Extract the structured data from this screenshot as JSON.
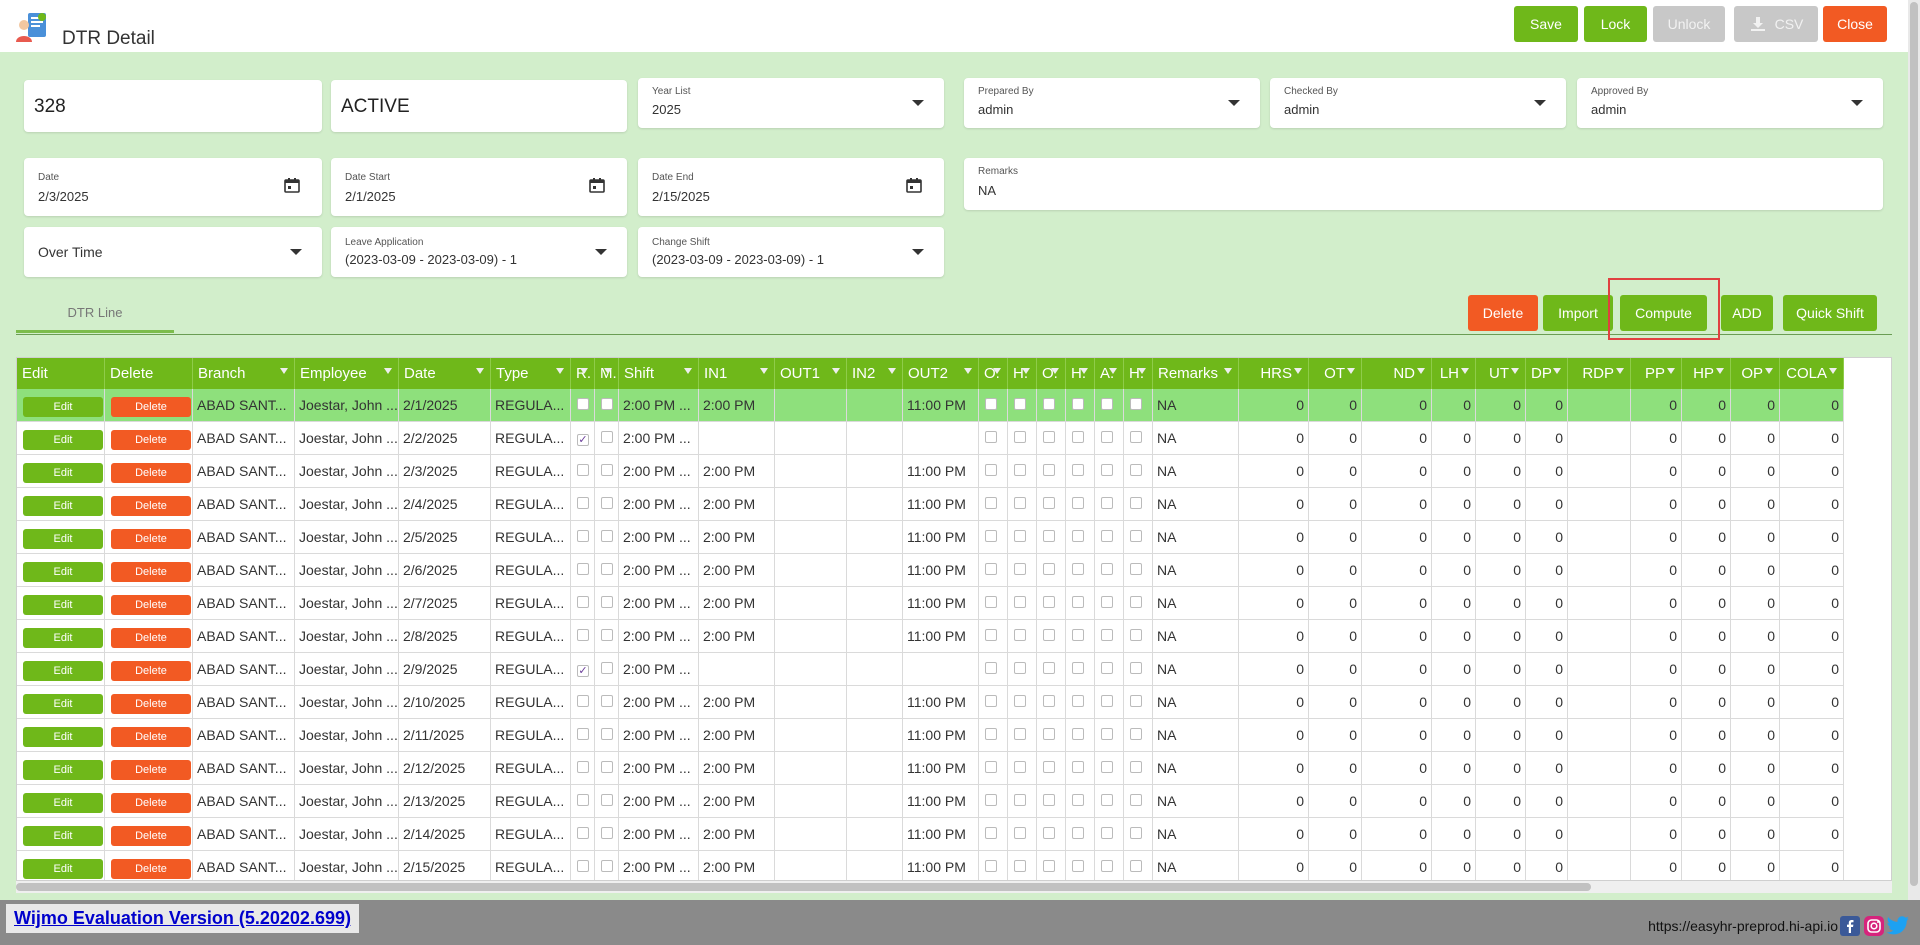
{
  "header": {
    "title": "DTR Detail",
    "buttons": {
      "save": "Save",
      "lock": "Lock",
      "unlock": "Unlock",
      "csv": "CSV",
      "close": "Close"
    }
  },
  "form": {
    "id_value": "328",
    "status_value": "ACTIVE",
    "year_list": {
      "label": "Year List",
      "value": "2025"
    },
    "prepared_by": {
      "label": "Prepared By",
      "value": "admin"
    },
    "checked_by": {
      "label": "Checked By",
      "value": "admin"
    },
    "approved_by": {
      "label": "Approved By",
      "value": "admin"
    },
    "date": {
      "label": "Date",
      "value": "2/3/2025"
    },
    "date_start": {
      "label": "Date Start",
      "value": "2/1/2025"
    },
    "date_end": {
      "label": "Date End",
      "value": "2/15/2025"
    },
    "remarks": {
      "label": "Remarks",
      "value": "NA"
    },
    "over_time": {
      "value": "Over Time"
    },
    "leave_application": {
      "label": "Leave Application",
      "value": "(2023-03-09 - 2023-03-09) - 1"
    },
    "change_shift": {
      "label": "Change Shift",
      "value": "(2023-03-09 - 2023-03-09) - 1"
    }
  },
  "tabs": {
    "dtr_line": "DTR Line"
  },
  "grid_actions": {
    "delete": "Delete",
    "import": "Import",
    "compute": "Compute",
    "add": "ADD",
    "quick_shift": "Quick Shift"
  },
  "grid": {
    "columns": [
      "Edit",
      "Delete",
      "Branch",
      "Employee",
      "Date",
      "Type",
      "R.",
      "M.",
      "Shift",
      "IN1",
      "OUT1",
      "IN2",
      "OUT2",
      "O.",
      "H.",
      "O.",
      "H.",
      "A.",
      "H.",
      "Remarks",
      "HRS",
      "OT",
      "ND",
      "LH",
      "UT",
      "DP",
      "RDP",
      "PP",
      "HP",
      "OP",
      "COLA"
    ],
    "edit_label": "Edit",
    "delete_label": "Delete",
    "rows": [
      {
        "branch": "ABAD SANT...",
        "employee": "Joestar, John ...",
        "date": "2/1/2025",
        "type": "REGULA...",
        "restday": false,
        "shift": "2:00 PM ...",
        "in1": "2:00 PM",
        "out2": "11:00 PM",
        "remarks": "NA",
        "vals": [
          "0",
          "0",
          "0",
          "0",
          "0",
          "0",
          "",
          "0",
          "0",
          "0",
          "0"
        ]
      },
      {
        "branch": "ABAD SANT...",
        "employee": "Joestar, John ...",
        "date": "2/2/2025",
        "type": "REGULA...",
        "restday": true,
        "shift": "2:00 PM ...",
        "in1": "",
        "out2": "",
        "remarks": "NA",
        "vals": [
          "0",
          "0",
          "0",
          "0",
          "0",
          "0",
          "",
          "0",
          "0",
          "0",
          "0"
        ]
      },
      {
        "branch": "ABAD SANT...",
        "employee": "Joestar, John ...",
        "date": "2/3/2025",
        "type": "REGULA...",
        "restday": false,
        "shift": "2:00 PM ...",
        "in1": "2:00 PM",
        "out2": "11:00 PM",
        "remarks": "NA",
        "vals": [
          "0",
          "0",
          "0",
          "0",
          "0",
          "0",
          "",
          "0",
          "0",
          "0",
          "0"
        ]
      },
      {
        "branch": "ABAD SANT...",
        "employee": "Joestar, John ...",
        "date": "2/4/2025",
        "type": "REGULA...",
        "restday": false,
        "shift": "2:00 PM ...",
        "in1": "2:00 PM",
        "out2": "11:00 PM",
        "remarks": "NA",
        "vals": [
          "0",
          "0",
          "0",
          "0",
          "0",
          "0",
          "",
          "0",
          "0",
          "0",
          "0"
        ]
      },
      {
        "branch": "ABAD SANT...",
        "employee": "Joestar, John ...",
        "date": "2/5/2025",
        "type": "REGULA...",
        "restday": false,
        "shift": "2:00 PM ...",
        "in1": "2:00 PM",
        "out2": "11:00 PM",
        "remarks": "NA",
        "vals": [
          "0",
          "0",
          "0",
          "0",
          "0",
          "0",
          "",
          "0",
          "0",
          "0",
          "0"
        ]
      },
      {
        "branch": "ABAD SANT...",
        "employee": "Joestar, John ...",
        "date": "2/6/2025",
        "type": "REGULA...",
        "restday": false,
        "shift": "2:00 PM ...",
        "in1": "2:00 PM",
        "out2": "11:00 PM",
        "remarks": "NA",
        "vals": [
          "0",
          "0",
          "0",
          "0",
          "0",
          "0",
          "",
          "0",
          "0",
          "0",
          "0"
        ]
      },
      {
        "branch": "ABAD SANT...",
        "employee": "Joestar, John ...",
        "date": "2/7/2025",
        "type": "REGULA...",
        "restday": false,
        "shift": "2:00 PM ...",
        "in1": "2:00 PM",
        "out2": "11:00 PM",
        "remarks": "NA",
        "vals": [
          "0",
          "0",
          "0",
          "0",
          "0",
          "0",
          "",
          "0",
          "0",
          "0",
          "0"
        ]
      },
      {
        "branch": "ABAD SANT...",
        "employee": "Joestar, John ...",
        "date": "2/8/2025",
        "type": "REGULA...",
        "restday": false,
        "shift": "2:00 PM ...",
        "in1": "2:00 PM",
        "out2": "11:00 PM",
        "remarks": "NA",
        "vals": [
          "0",
          "0",
          "0",
          "0",
          "0",
          "0",
          "",
          "0",
          "0",
          "0",
          "0"
        ]
      },
      {
        "branch": "ABAD SANT...",
        "employee": "Joestar, John ...",
        "date": "2/9/2025",
        "type": "REGULA...",
        "restday": true,
        "shift": "2:00 PM ...",
        "in1": "",
        "out2": "",
        "remarks": "NA",
        "vals": [
          "0",
          "0",
          "0",
          "0",
          "0",
          "0",
          "",
          "0",
          "0",
          "0",
          "0"
        ]
      },
      {
        "branch": "ABAD SANT...",
        "employee": "Joestar, John ...",
        "date": "2/10/2025",
        "type": "REGULA...",
        "restday": false,
        "shift": "2:00 PM ...",
        "in1": "2:00 PM",
        "out2": "11:00 PM",
        "remarks": "NA",
        "vals": [
          "0",
          "0",
          "0",
          "0",
          "0",
          "0",
          "",
          "0",
          "0",
          "0",
          "0"
        ]
      },
      {
        "branch": "ABAD SANT...",
        "employee": "Joestar, John ...",
        "date": "2/11/2025",
        "type": "REGULA...",
        "restday": false,
        "shift": "2:00 PM ...",
        "in1": "2:00 PM",
        "out2": "11:00 PM",
        "remarks": "NA",
        "vals": [
          "0",
          "0",
          "0",
          "0",
          "0",
          "0",
          "",
          "0",
          "0",
          "0",
          "0"
        ]
      },
      {
        "branch": "ABAD SANT...",
        "employee": "Joestar, John ...",
        "date": "2/12/2025",
        "type": "REGULA...",
        "restday": false,
        "shift": "2:00 PM ...",
        "in1": "2:00 PM",
        "out2": "11:00 PM",
        "remarks": "NA",
        "vals": [
          "0",
          "0",
          "0",
          "0",
          "0",
          "0",
          "",
          "0",
          "0",
          "0",
          "0"
        ]
      },
      {
        "branch": "ABAD SANT...",
        "employee": "Joestar, John ...",
        "date": "2/13/2025",
        "type": "REGULA...",
        "restday": false,
        "shift": "2:00 PM ...",
        "in1": "2:00 PM",
        "out2": "11:00 PM",
        "remarks": "NA",
        "vals": [
          "0",
          "0",
          "0",
          "0",
          "0",
          "0",
          "",
          "0",
          "0",
          "0",
          "0"
        ]
      },
      {
        "branch": "ABAD SANT...",
        "employee": "Joestar, John ...",
        "date": "2/14/2025",
        "type": "REGULA...",
        "restday": false,
        "shift": "2:00 PM ...",
        "in1": "2:00 PM",
        "out2": "11:00 PM",
        "remarks": "NA",
        "vals": [
          "0",
          "0",
          "0",
          "0",
          "0",
          "0",
          "",
          "0",
          "0",
          "0",
          "0"
        ]
      },
      {
        "branch": "ABAD SANT...",
        "employee": "Joestar, John ...",
        "date": "2/15/2025",
        "type": "REGULA...",
        "restday": false,
        "shift": "2:00 PM ...",
        "in1": "2:00 PM",
        "out2": "11:00 PM",
        "remarks": "NA",
        "vals": [
          "0",
          "0",
          "0",
          "0",
          "0",
          "0",
          "",
          "0",
          "0",
          "0",
          "0"
        ]
      }
    ]
  },
  "footer": {
    "wijmo": "Wijmo Evaluation Version (5.20202.699)",
    "url": "https://easyhr-preprod.hi-api.io"
  },
  "colors": {
    "primary_green": "#6fb81a",
    "danger_red": "#f25a23",
    "page_bg": "#d2eecb",
    "selected_row": "#8ee07c"
  },
  "icons": {
    "app": "employee-document-icon",
    "calendar": "calendar-icon",
    "download": "download-icon",
    "facebook": "facebook-icon",
    "instagram": "instagram-icon",
    "twitter": "twitter-icon"
  }
}
